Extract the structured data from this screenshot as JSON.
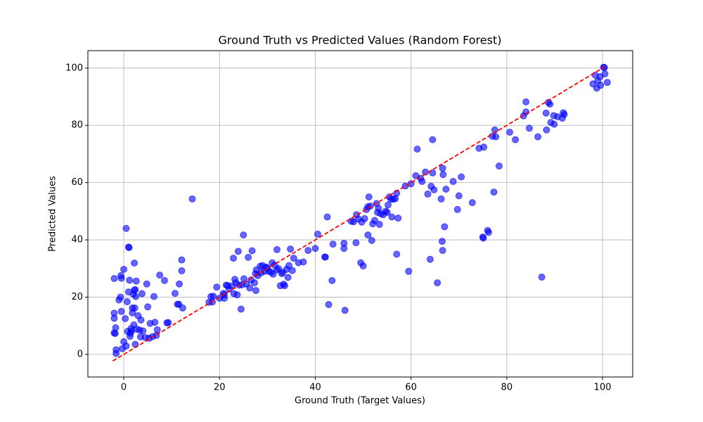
{
  "chart_data": {
    "type": "scatter",
    "title": "Ground Truth vs Predicted Values (Random Forest)",
    "x_label": "Ground Truth (Target Values)",
    "y_label": "Predicted Values",
    "color": "blue",
    "grid": true,
    "xlim": [
      -7.5,
      106.3
    ],
    "ylim": [
      -7.9,
      106.1
    ],
    "xticks": [
      0,
      20,
      40,
      60,
      80,
      100
    ],
    "yticks": [
      0,
      20,
      40,
      60,
      80,
      100
    ],
    "reference_line": {
      "color": "red",
      "x": [
        -2.3,
        100.5
      ],
      "y": [
        -2.3,
        100.5
      ]
    },
    "x": [
      -2,
      -2,
      -2,
      -2,
      -1.8,
      -1.7,
      -1.6,
      -1.6,
      -1,
      -0.7,
      -0.6,
      -0.5,
      -0.5,
      -0.3,
      0,
      0,
      0.3,
      0.5,
      0.5,
      0.7,
      0.8,
      1,
      1,
      1.1,
      1.2,
      1.3,
      1.4,
      1.5,
      1.6,
      1.8,
      1.8,
      2,
      2.1,
      2.2,
      2.2,
      2.3,
      2.4,
      2.4,
      2.5,
      2.6,
      2.7,
      3,
      3.3,
      3.5,
      3.6,
      3.8,
      4,
      4.5,
      4.8,
      5,
      5.3,
      5.5,
      6,
      6.3,
      6.5,
      6.8,
      7,
      7.5,
      8.5,
      9,
      9.3,
      10.7,
      11.2,
      11.6,
      11.5,
      12.1,
      12.1,
      12.3,
      14.3,
      17.8,
      18.2,
      18.5,
      18.7,
      19.4,
      20,
      20.8,
      21,
      21,
      21.4,
      21.7,
      22,
      22.6,
      22.9,
      23,
      23.2,
      23.4,
      23.7,
      23.9,
      24.1,
      24.5,
      24.7,
      25,
      25.1,
      25.6,
      26,
      26.3,
      26.6,
      26.8,
      27.3,
      27.5,
      27.6,
      27.7,
      28,
      28.5,
      28.7,
      29,
      29.4,
      29.7,
      30,
      30.3,
      30.8,
      31,
      31.2,
      31.5,
      32,
      32,
      32.3,
      32.7,
      33,
      33.2,
      33.4,
      33.6,
      34,
      34.3,
      34.5,
      34.8,
      35.2,
      35.5,
      36.5,
      37.5,
      38.5,
      40,
      40.5,
      42,
      42.1,
      42.5,
      42.8,
      43.5,
      43.7,
      46,
      46,
      46.2,
      47.5,
      48,
      48.5,
      48.6,
      49,
      49.5,
      49.7,
      50,
      50.3,
      50.7,
      51,
      51,
      51.2,
      51.5,
      51.8,
      52,
      52.4,
      52.8,
      53,
      53.2,
      53.4,
      53.7,
      54.2,
      54.7,
      55,
      55.2,
      55.5,
      55.8,
      56,
      56.3,
      56.7,
      57,
      57,
      57.3,
      58.8,
      59.5,
      60,
      61,
      61.3,
      62,
      62.3,
      63,
      63.5,
      64,
      64.2,
      64.5,
      64.5,
      64.8,
      65.5,
      66.3,
      66.5,
      66.6,
      66.6,
      66.7,
      67,
      67.3,
      68.8,
      69.7,
      70,
      70.5,
      72.8,
      74.2,
      75,
      75.1,
      75.2,
      76,
      76.2,
      77,
      77.3,
      77.5,
      77.7,
      78.4,
      80.6,
      81.8,
      83.5,
      84,
      84,
      84.7,
      86.5,
      87.3,
      88.2,
      88.3,
      88.7,
      89,
      89.2,
      89.8,
      89.9,
      90.6,
      91.6,
      91.8,
      92,
      98,
      98.5,
      98.8,
      99,
      99.5,
      99.6,
      100.2,
      100.4,
      100.5,
      101
    ],
    "y": [
      26.5,
      14.4,
      12.6,
      7.5,
      7.3,
      9.3,
      1.6,
      0.3,
      19,
      20,
      27.5,
      26.6,
      15,
      2,
      29.7,
      4.4,
      12.5,
      2.9,
      44,
      18.4,
      8,
      21.8,
      37.5,
      37.3,
      25.9,
      6.3,
      7.4,
      9,
      8.1,
      16.2,
      14.5,
      21,
      10.3,
      31.9,
      22.4,
      16.2,
      22.6,
      3.5,
      20.2,
      25.6,
      8.8,
      13.5,
      8.5,
      6.1,
      12,
      21.2,
      8.2,
      5.9,
      24.6,
      16.6,
      5.6,
      10.8,
      6.2,
      20.2,
      11.2,
      6.6,
      8.6,
      27.7,
      25.8,
      11,
      11.1,
      21.3,
      17.5,
      24.6,
      17.5,
      29.2,
      33,
      16.2,
      54.3,
      18.2,
      20.2,
      18.3,
      20.3,
      23.5,
      19.6,
      21.3,
      19.6,
      20.8,
      24.2,
      24,
      22.8,
      23.9,
      33.6,
      21.2,
      26.2,
      25,
      20.8,
      36,
      24.2,
      15.8,
      24.3,
      41.7,
      26.4,
      24.6,
      33.9,
      23.2,
      26,
      36.2,
      25,
      28.2,
      22.3,
      29.5,
      27.5,
      30.8,
      28.5,
      31,
      29,
      30.5,
      30.2,
      29,
      28.7,
      32,
      28,
      31.2,
      29.5,
      36.6,
      30,
      24,
      28.2,
      28.7,
      24.5,
      24,
      29.7,
      26.9,
      31,
      36.8,
      29.3,
      33.6,
      32,
      32.3,
      36.3,
      37,
      42,
      34,
      34,
      48,
      17.4,
      25.8,
      38.5,
      37,
      38.8,
      15.4,
      46.5,
      46.3,
      39,
      48.8,
      47.3,
      32,
      46.2,
      30.9,
      47.4,
      50.6,
      51.6,
      41.7,
      55,
      51.8,
      39.8,
      45.6,
      46.8,
      52.7,
      49.6,
      51,
      45.4,
      49.1,
      48.8,
      50,
      49.6,
      52.2,
      55,
      54.2,
      48,
      54.2,
      54.4,
      56.3,
      35,
      47.6,
      58.8,
      29,
      59.6,
      62.4,
      71.7,
      61.5,
      60.4,
      63.7,
      56,
      33.2,
      58.7,
      75,
      63.4,
      57.5,
      25,
      54.3,
      39.5,
      36.3,
      65,
      62.8,
      44.6,
      57.7,
      60.4,
      50.6,
      55.4,
      62,
      53,
      72,
      41,
      40.6,
      72.4,
      43.3,
      42.6,
      76.2,
      56.7,
      78.4,
      76,
      65.8,
      77.6,
      75,
      83.3,
      84.7,
      88.2,
      79,
      76,
      27,
      84.3,
      78.4,
      88,
      87.4,
      81,
      83.4,
      80.4,
      83,
      82.5,
      84.4,
      83.8,
      94.5,
      97.5,
      93,
      95.5,
      97,
      94,
      100.3,
      100.2,
      98,
      95
    ]
  }
}
